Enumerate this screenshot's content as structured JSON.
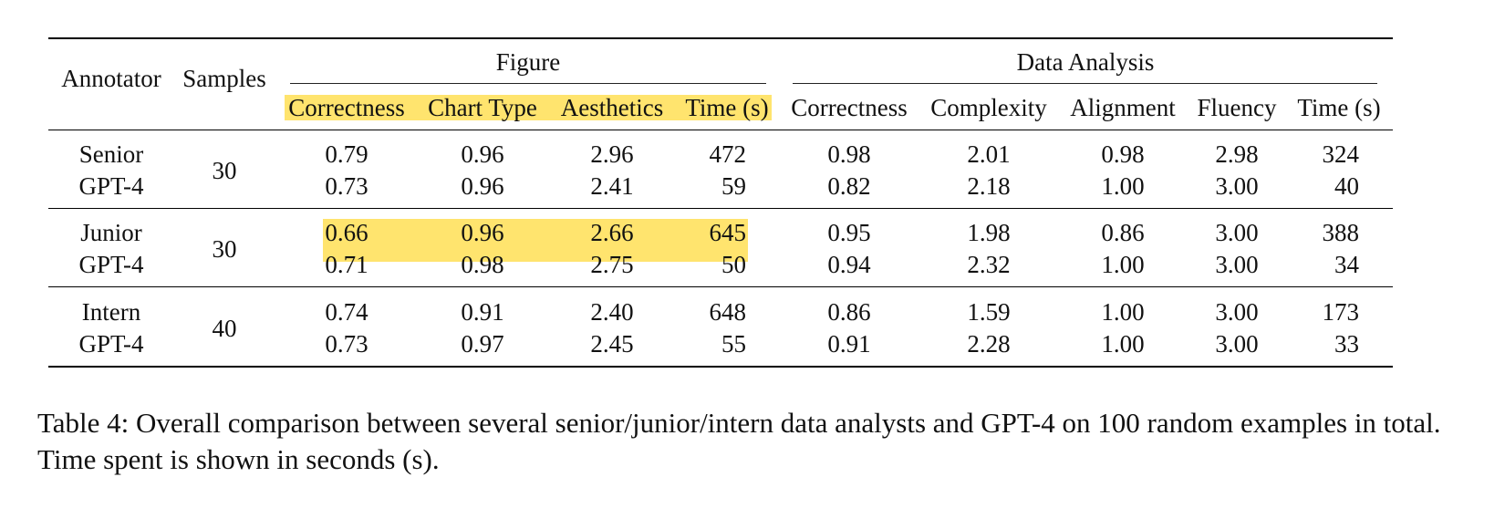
{
  "table": {
    "headers": {
      "annotator": "Annotator",
      "samples": "Samples",
      "group_figure": "Figure",
      "group_data_analysis": "Data Analysis",
      "figure_columns": [
        "Correctness",
        "Chart Type",
        "Aesthetics",
        "Time (s)"
      ],
      "data_analysis_columns": [
        "Correctness",
        "Complexity",
        "Alignment",
        "Fluency",
        "Time (s)"
      ]
    },
    "groups": [
      {
        "samples": "30",
        "rows": [
          {
            "annotator": "Senior",
            "figure": [
              "0.79",
              "0.96",
              "2.96",
              "472"
            ],
            "data_analysis": [
              "0.98",
              "2.01",
              "0.98",
              "2.98",
              "324"
            ]
          },
          {
            "annotator": "GPT-4",
            "figure": [
              "0.73",
              "0.96",
              "2.41",
              "59"
            ],
            "data_analysis": [
              "0.82",
              "2.18",
              "1.00",
              "3.00",
              "40"
            ]
          }
        ]
      },
      {
        "samples": "30",
        "rows": [
          {
            "annotator": "Junior",
            "figure": [
              "0.66",
              "0.96",
              "2.66",
              "645"
            ],
            "data_analysis": [
              "0.95",
              "1.98",
              "0.86",
              "3.00",
              "388"
            ]
          },
          {
            "annotator": "GPT-4",
            "figure": [
              "0.71",
              "0.98",
              "2.75",
              "50"
            ],
            "data_analysis": [
              "0.94",
              "2.32",
              "1.00",
              "3.00",
              "34"
            ]
          }
        ]
      },
      {
        "samples": "40",
        "rows": [
          {
            "annotator": "Intern",
            "figure": [
              "0.74",
              "0.91",
              "2.40",
              "648"
            ],
            "data_analysis": [
              "0.86",
              "1.59",
              "1.00",
              "3.00",
              "173"
            ]
          },
          {
            "annotator": "GPT-4",
            "figure": [
              "0.73",
              "0.97",
              "2.45",
              "55"
            ],
            "data_analysis": [
              "0.91",
              "2.28",
              "1.00",
              "3.00",
              "33"
            ]
          }
        ]
      }
    ],
    "highlight_color": "#ffe46e"
  },
  "caption": "Table 4: Overall comparison between several senior/junior/intern data analysts and GPT-4 on 100 random examples in total. Time spent is shown in seconds (s)."
}
